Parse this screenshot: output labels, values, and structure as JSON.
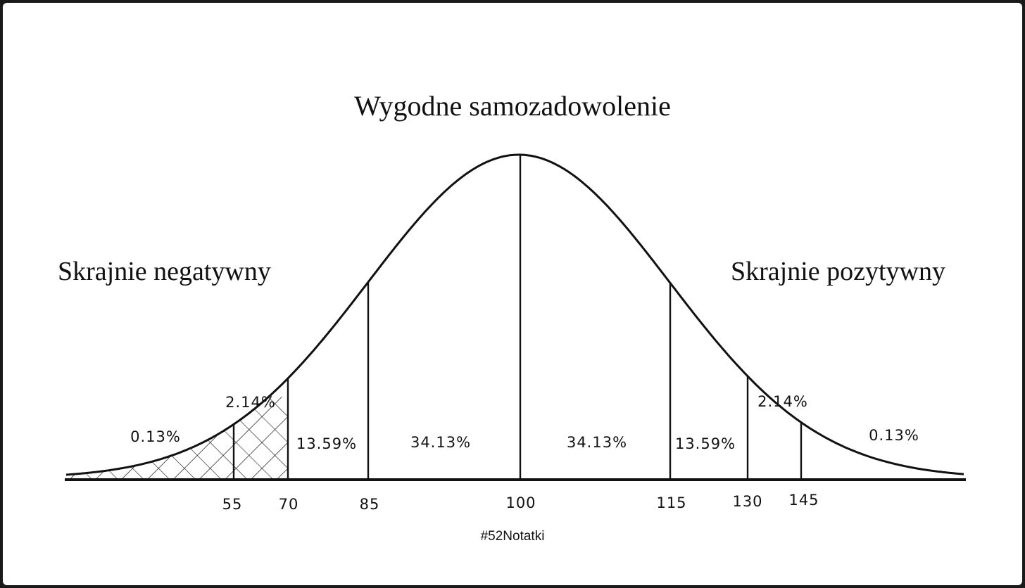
{
  "diagram": {
    "title": "Wygodne samozadowolenie",
    "left_label": "Skrajnie negatywny",
    "right_label": "Skrajnie pozytywny",
    "footer": "#52Notatki",
    "axis_ticks": [
      "55",
      "70",
      "85",
      "100",
      "115",
      "130",
      "145"
    ],
    "region_percentages": {
      "left_tail": "0.13%",
      "left_mid": "2.14%",
      "left_inner": "13.59%",
      "left_center": "34.13%",
      "right_center": "34.13%",
      "right_inner": "13.59%",
      "right_mid": "2.14%",
      "right_tail": "0.13%"
    }
  }
}
